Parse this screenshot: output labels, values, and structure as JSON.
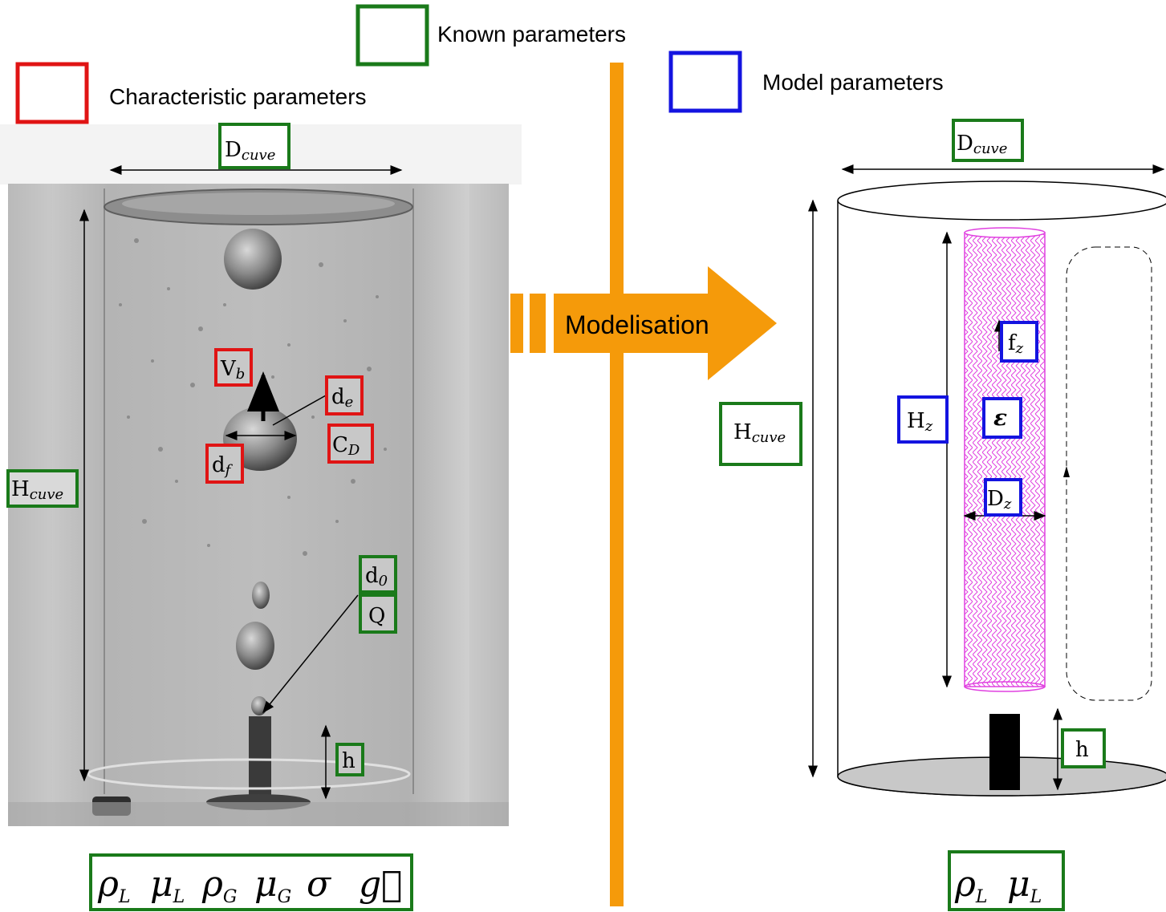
{
  "legend": {
    "known": "Known parameters",
    "characteristic": "Characteristic parameters",
    "model": "Model parameters"
  },
  "colors": {
    "known": "#1a7a1a",
    "characteristic": "#e01414",
    "model": "#1414e0",
    "divider": "#f59a0a",
    "zone": "#e040e0"
  },
  "arrow_label": "Modelisation",
  "photo": {
    "labels": {
      "d_cuve": {
        "main": "D",
        "sub": "cuve"
      },
      "h_cuve": {
        "main": "H",
        "sub": "cuve"
      },
      "v_b": {
        "main": "V",
        "sub": "b"
      },
      "d_e": {
        "main": "d",
        "sub": "e"
      },
      "c_d": {
        "main": "C",
        "sub": "D"
      },
      "d_f": {
        "main": "d",
        "sub": "f"
      },
      "d_0": {
        "main": "d",
        "sub": "0"
      },
      "q": {
        "main": "Q",
        "sub": ""
      },
      "h": {
        "main": "h",
        "sub": ""
      }
    },
    "properties": [
      "ρL",
      "μL",
      "ρG",
      "μG",
      "σ",
      "g⃗"
    ]
  },
  "model": {
    "labels": {
      "d_cuve": {
        "main": "D",
        "sub": "cuve"
      },
      "h_cuve": {
        "main": "H",
        "sub": "cuve"
      },
      "h_z": {
        "main": "H",
        "sub": "z"
      },
      "f_z": {
        "main": "f",
        "sub": "z"
      },
      "epsilon": {
        "main": "ε",
        "sub": ""
      },
      "d_z": {
        "main": "D",
        "sub": "z"
      },
      "h": {
        "main": "h",
        "sub": ""
      }
    },
    "properties": [
      "ρL",
      "μL"
    ]
  }
}
